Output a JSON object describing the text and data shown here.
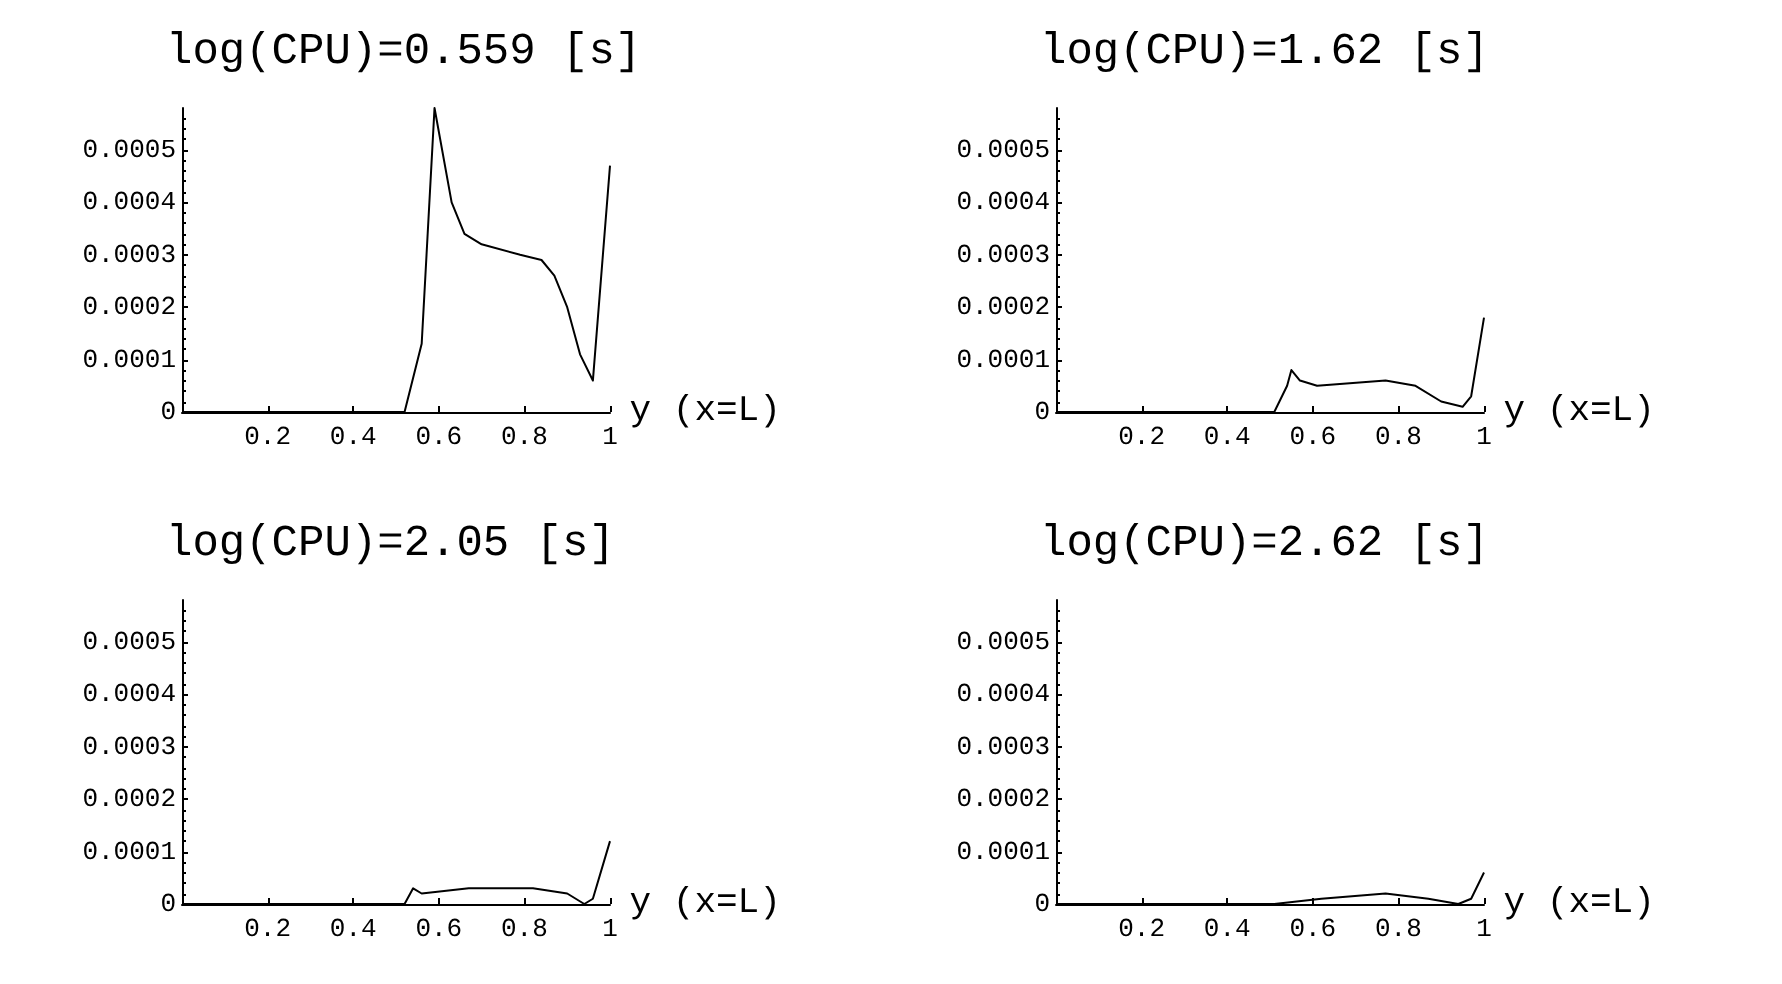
{
  "chart_data": [
    {
      "type": "line",
      "title": "log(CPU)=0.559 [s]",
      "xlabel": "y (x=L)",
      "color": "#000000",
      "xlim": [
        0,
        1
      ],
      "xticks": [
        0.2,
        0.4,
        0.6,
        0.8,
        1
      ],
      "ylim": [
        0,
        0.00058
      ],
      "yticks": [
        0,
        0.0001,
        0.0002,
        0.0003,
        0.0004,
        0.0005
      ],
      "grid": false,
      "marker": "none",
      "line_style": "solid",
      "x": [
        0,
        0.52,
        0.56,
        0.59,
        0.63,
        0.66,
        0.7,
        0.79,
        0.84,
        0.87,
        0.9,
        0.93,
        0.96,
        1.0
      ],
      "values": [
        0,
        0,
        0.00013,
        0.00058,
        0.0004,
        0.00034,
        0.00032,
        0.0003,
        0.00029,
        0.00026,
        0.0002,
        0.00011,
        6e-05,
        0.00047
      ]
    },
    {
      "type": "line",
      "title": "log(CPU)=1.62 [s]",
      "xlabel": "y (x=L)",
      "color": "#000000",
      "xlim": [
        0,
        1
      ],
      "xticks": [
        0.2,
        0.4,
        0.6,
        0.8,
        1
      ],
      "ylim": [
        0,
        0.00058
      ],
      "yticks": [
        0,
        0.0001,
        0.0002,
        0.0003,
        0.0004,
        0.0005
      ],
      "grid": false,
      "marker": "none",
      "line_style": "solid",
      "x": [
        0,
        0.51,
        0.54,
        0.55,
        0.57,
        0.61,
        0.77,
        0.84,
        0.9,
        0.95,
        0.97,
        1.0
      ],
      "values": [
        0,
        0,
        5e-05,
        8e-05,
        6e-05,
        5e-05,
        6e-05,
        5e-05,
        2e-05,
        1e-05,
        3e-05,
        0.00018
      ]
    },
    {
      "type": "line",
      "title": "log(CPU)=2.05 [s]",
      "xlabel": "y (x=L)",
      "color": "#000000",
      "xlim": [
        0,
        1
      ],
      "xticks": [
        0.2,
        0.4,
        0.6,
        0.8,
        1
      ],
      "ylim": [
        0,
        0.00058
      ],
      "yticks": [
        0,
        0.0001,
        0.0002,
        0.0003,
        0.0004,
        0.0005
      ],
      "grid": false,
      "marker": "none",
      "line_style": "solid",
      "x": [
        0,
        0.52,
        0.54,
        0.56,
        0.67,
        0.82,
        0.9,
        0.94,
        0.96,
        1.0
      ],
      "values": [
        0,
        0,
        3e-05,
        2e-05,
        3e-05,
        3e-05,
        2e-05,
        0,
        1e-05,
        0.00012
      ]
    },
    {
      "type": "line",
      "title": "log(CPU)=2.62 [s]",
      "xlabel": "y (x=L)",
      "color": "#000000",
      "xlim": [
        0,
        1
      ],
      "xticks": [
        0.2,
        0.4,
        0.6,
        0.8,
        1
      ],
      "ylim": [
        0,
        0.00058
      ],
      "yticks": [
        0,
        0.0001,
        0.0002,
        0.0003,
        0.0004,
        0.0005
      ],
      "grid": false,
      "marker": "none",
      "line_style": "solid",
      "x": [
        0,
        0.51,
        0.62,
        0.77,
        0.87,
        0.94,
        0.97,
        1.0
      ],
      "values": [
        0,
        0,
        1e-05,
        2e-05,
        1e-05,
        0,
        1e-05,
        6e-05
      ]
    }
  ]
}
